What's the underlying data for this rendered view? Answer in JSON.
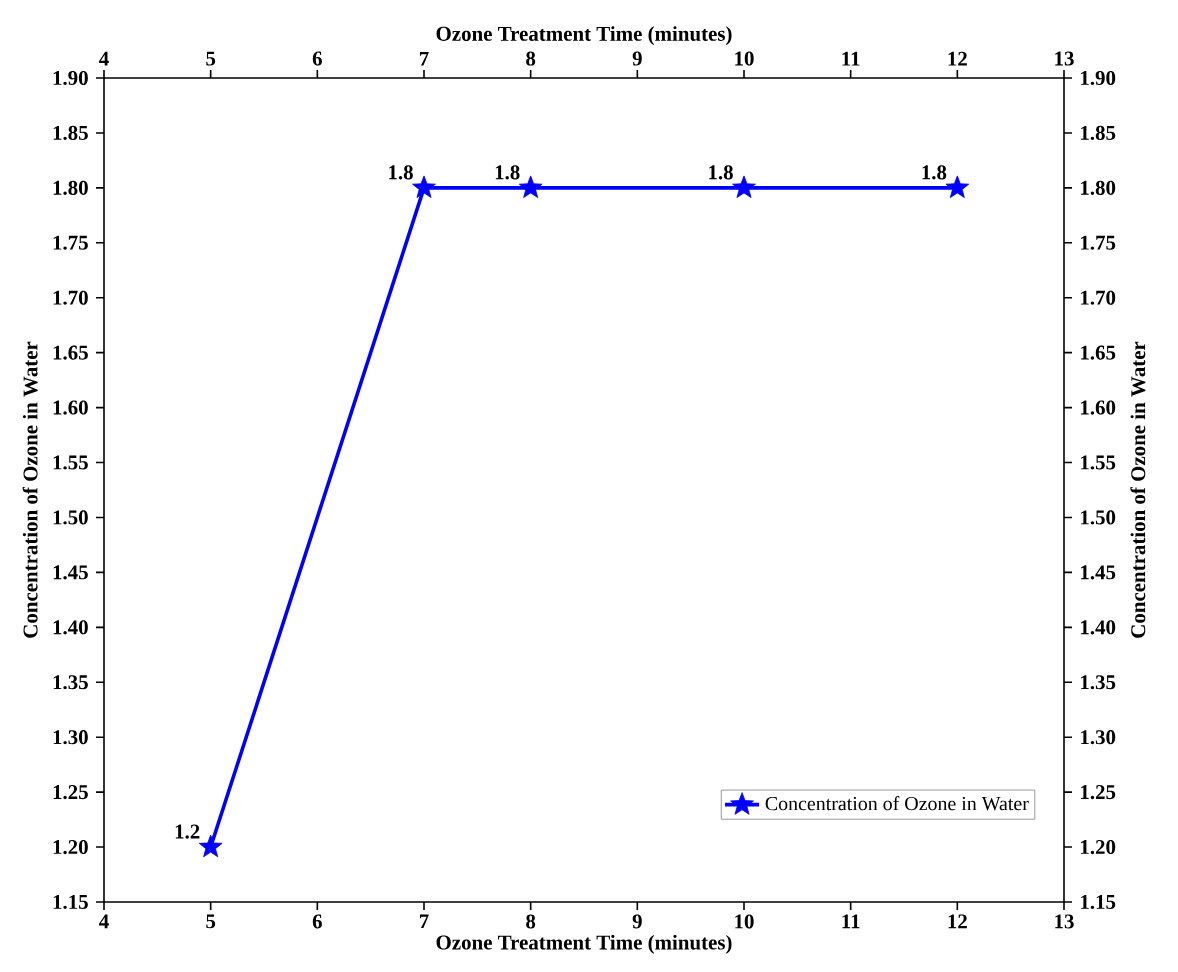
{
  "chart_data": {
    "type": "line",
    "xlabel": "Ozone Treatment Time (minutes)",
    "x2label": "Ozone Treatment Time (minutes)",
    "ylabel": "Concentration of Ozone in Water",
    "y2label": "Concentration of Ozone in Water",
    "xlim": [
      4,
      13
    ],
    "xticks": [
      4,
      5,
      6,
      7,
      8,
      9,
      10,
      11,
      12,
      13
    ],
    "x2lim": [
      4,
      13
    ],
    "x2ticks": [
      4,
      5,
      6,
      7,
      8,
      9,
      10,
      11,
      12,
      13
    ],
    "ylim": [
      1.15,
      1.9
    ],
    "yticks": [
      1.15,
      {
        "value": 1.2,
        "label": "1.20"
      },
      1.25,
      {
        "value": 1.3,
        "label": "1.30"
      },
      1.35,
      {
        "value": 1.4,
        "label": "1.40"
      },
      1.45,
      {
        "value": 1.5,
        "label": "1.50"
      },
      1.55,
      {
        "value": 1.6,
        "label": "1.60"
      },
      1.65,
      {
        "value": 1.7,
        "label": "1.70"
      },
      1.75,
      {
        "value": 1.8,
        "label": "1.80"
      },
      1.85,
      {
        "value": 1.9,
        "label": "1.90"
      }
    ],
    "y2lim": [
      1.15,
      1.9
    ],
    "y2ticks": [
      1.15,
      {
        "value": 1.2,
        "label": "1.20"
      },
      1.25,
      {
        "value": 1.3,
        "label": "1.30"
      },
      1.35,
      {
        "value": 1.4,
        "label": "1.40"
      },
      1.45,
      {
        "value": 1.5,
        "label": "1.50"
      },
      1.55,
      {
        "value": 1.6,
        "label": "1.60"
      },
      1.65,
      {
        "value": 1.7,
        "label": "1.70"
      },
      1.75,
      {
        "value": 1.8,
        "label": "1.80"
      },
      1.85,
      {
        "value": 1.9,
        "label": "1.90"
      }
    ],
    "series": [
      {
        "name": "Concentration of Ozone in Water",
        "color": "#0000ff",
        "x": [
          5,
          7,
          8,
          10,
          12
        ],
        "values": [
          1.2,
          1.8,
          1.8,
          1.8,
          1.8
        ]
      }
    ],
    "data_labels": true,
    "legend": "bottom right",
    "marker": "star",
    "line_style": "solid",
    "grid": false
  }
}
